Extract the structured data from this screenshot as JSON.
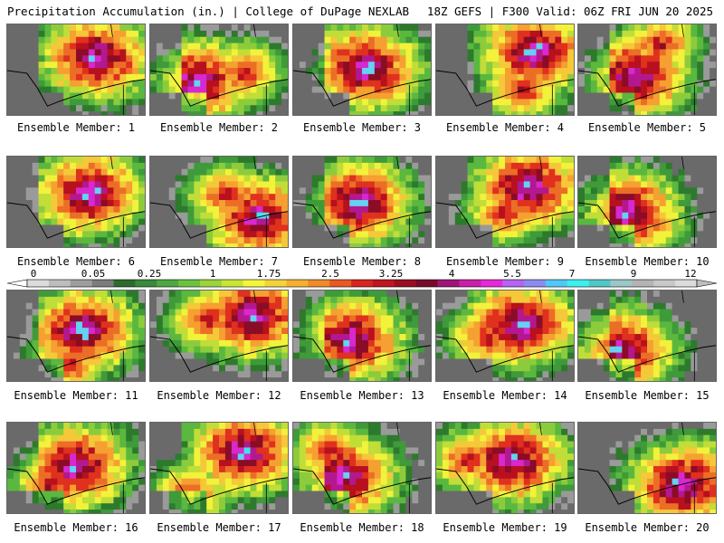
{
  "header": {
    "title": "Precipitation Accumulation (in.) | College of DuPage NEXLAB",
    "run_info": "18Z GEFS | F300 Valid: 06Z FRI JUN 20 2025"
  },
  "colorbar": {
    "tick_labels": [
      "0",
      "0.05",
      "0.25",
      "1",
      "1.75",
      "2.5",
      "3.25",
      "4",
      "5.5",
      "7",
      "9",
      "12"
    ],
    "colors": [
      "#dcdcdc",
      "#bdbdbd",
      "#9d9d9d",
      "#7d7d7d",
      "#2d6b2d",
      "#3a8a3a",
      "#4ea842",
      "#6dc23f",
      "#9ad43a",
      "#c9e534",
      "#f5f53a",
      "#f5d23a",
      "#f5b030",
      "#f08a28",
      "#e85a22",
      "#d8261e",
      "#c0141e",
      "#9a0e22",
      "#780a2a",
      "#a0147a",
      "#c81ea8",
      "#e628d8",
      "#b464f0",
      "#8c8cf0",
      "#50c8f5",
      "#3cf0f0",
      "#50c8c8",
      "#9ac8c8",
      "#b4b4b4",
      "#c8c8c8",
      "#dcdcdc"
    ]
  },
  "panels": [
    {
      "label": "Ensemble Member: 1"
    },
    {
      "label": "Ensemble Member: 2"
    },
    {
      "label": "Ensemble Member: 3"
    },
    {
      "label": "Ensemble Member: 4"
    },
    {
      "label": "Ensemble Member: 5"
    },
    {
      "label": "Ensemble Member: 6"
    },
    {
      "label": "Ensemble Member: 7"
    },
    {
      "label": "Ensemble Member: 8"
    },
    {
      "label": "Ensemble Member: 9"
    },
    {
      "label": "Ensemble Member: 10"
    },
    {
      "label": "Ensemble Member: 11"
    },
    {
      "label": "Ensemble Member: 12"
    },
    {
      "label": "Ensemble Member: 13"
    },
    {
      "label": "Ensemble Member: 14"
    },
    {
      "label": "Ensemble Member: 15"
    },
    {
      "label": "Ensemble Member: 16"
    },
    {
      "label": "Ensemble Member: 17"
    },
    {
      "label": "Ensemble Member: 18"
    },
    {
      "label": "Ensemble Member: 19"
    },
    {
      "label": "Ensemble Member: 20"
    }
  ]
}
